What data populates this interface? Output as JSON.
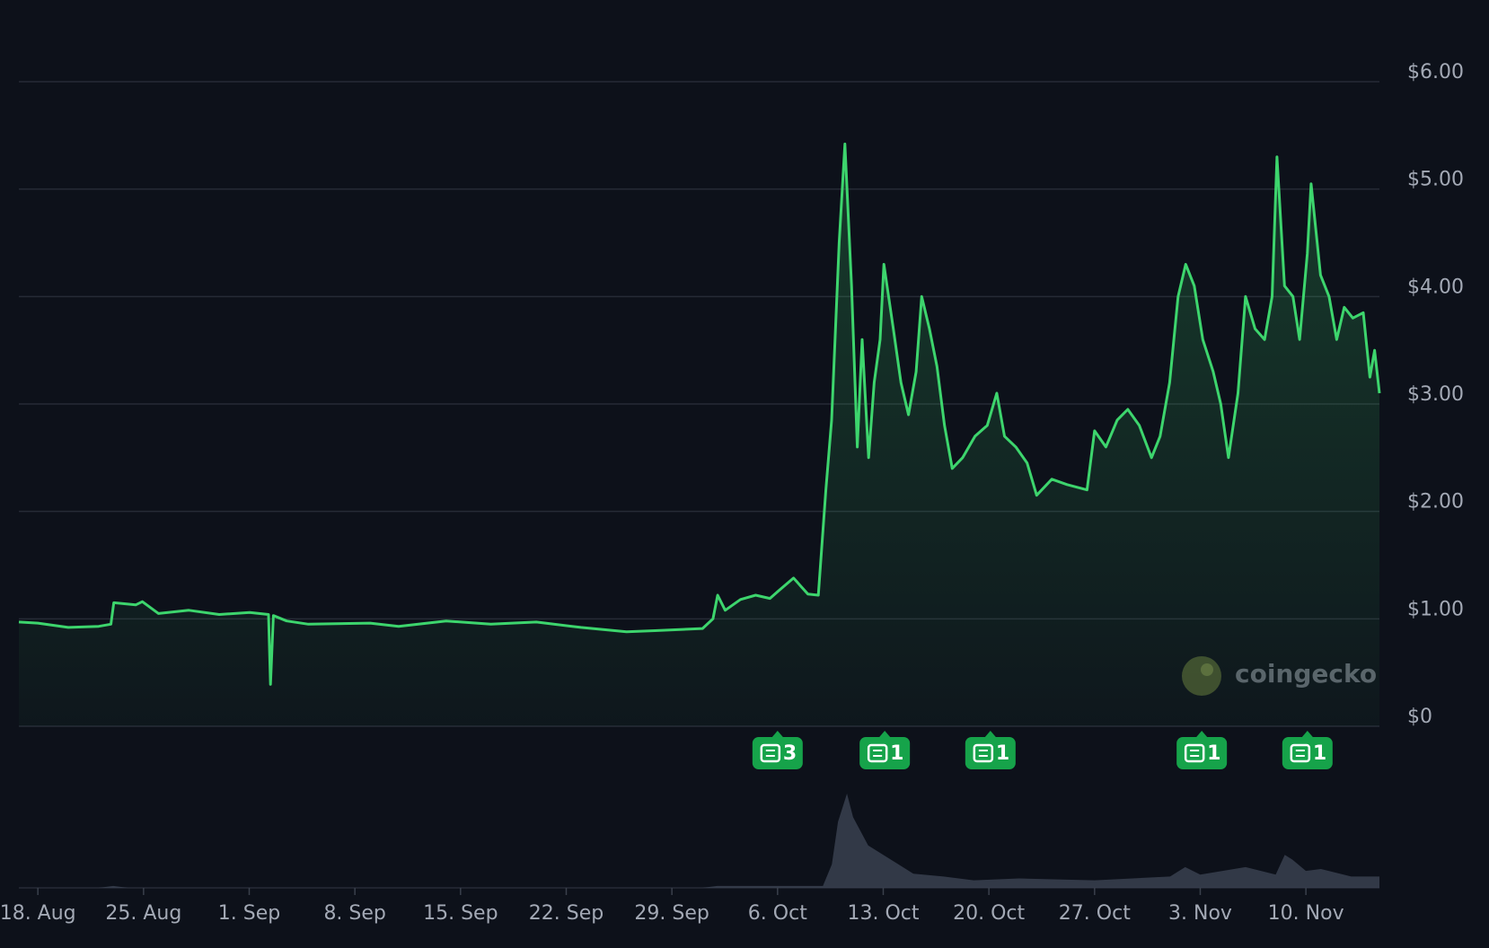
{
  "chart_data": {
    "type": "area",
    "color": "#3dd56d",
    "watermark": "coingecko",
    "x": [
      -1.26,
      0,
      2.01,
      4.03,
      4.84,
      5.03,
      6.48,
      6.92,
      7.99,
      10,
      12.01,
      14.03,
      15.28,
      15.41,
      15.6,
      16.48,
      17.92,
      22.01,
      23.9,
      27.04,
      30,
      33.02,
      35.97,
      38.99,
      40.88,
      44.03,
      44.72,
      45.03,
      45.53,
      46.54,
      47.55,
      48.49,
      49.06,
      50.06,
      51.01,
      51.7,
      52.2,
      52.58,
      53.08,
      53.46,
      53.9,
      54.28,
      54.6,
      55.03,
      55.4,
      55.79,
      56.04,
      56.67,
      57.17,
      57.67,
      58.18,
      58.55,
      59.06,
      59.56,
      60.06,
      60.57,
      61.26,
      62.08,
      62.89,
      63.52,
      64.03,
      64.78,
      65.53,
      66.16,
      67.17,
      68.18,
      69.5,
      70.0,
      70.75,
      71.5,
      72.2,
      72.96,
      73.77,
      74.34,
      74.97,
      75.53,
      76.04,
      76.6,
      77.17,
      77.86,
      78.36,
      78.87,
      79.5,
      80.0,
      80.63,
      81.26,
      81.76,
      82.08,
      82.58,
      83.14,
      83.58,
      84.09,
      84.34,
      84.97,
      85.53,
      86.04,
      86.54,
      87.11,
      87.8,
      88.24,
      88.55,
      88.87
    ],
    "values": [
      0.97,
      0.96,
      0.92,
      0.93,
      0.95,
      1.15,
      1.13,
      1.16,
      1.05,
      1.08,
      1.04,
      1.06,
      1.04,
      0.39,
      1.03,
      0.98,
      0.95,
      0.96,
      0.93,
      0.98,
      0.95,
      0.97,
      0.92,
      0.88,
      0.89,
      0.91,
      1.0,
      1.22,
      1.08,
      1.18,
      1.22,
      1.19,
      1.26,
      1.38,
      1.23,
      1.22,
      2.2,
      2.85,
      4.5,
      5.42,
      4.1,
      2.6,
      3.6,
      2.5,
      3.2,
      3.6,
      4.3,
      3.7,
      3.2,
      2.9,
      3.3,
      4.0,
      3.7,
      3.35,
      2.8,
      2.4,
      2.5,
      2.7,
      2.8,
      3.1,
      2.7,
      2.6,
      2.45,
      2.15,
      2.3,
      2.25,
      2.2,
      2.75,
      2.6,
      2.85,
      2.95,
      2.8,
      2.5,
      2.7,
      3.2,
      4.0,
      4.3,
      4.1,
      3.6,
      3.3,
      3.0,
      2.5,
      3.1,
      4.0,
      3.7,
      3.6,
      4.0,
      5.3,
      4.1,
      4.0,
      3.6,
      4.4,
      5.05,
      4.2,
      4.0,
      3.6,
      3.9,
      3.8,
      3.85,
      3.25,
      3.5,
      3.1
    ],
    "xlim": [
      -1.26,
      88.87
    ],
    "ylim": [
      0,
      6.4
    ],
    "yticks": [
      {
        "value": 0,
        "label": "$0"
      },
      {
        "value": 1,
        "label": "$1.00"
      },
      {
        "value": 2,
        "label": "$2.00"
      },
      {
        "value": 3,
        "label": "$3.00"
      },
      {
        "value": 4,
        "label": "$4.00"
      },
      {
        "value": 5,
        "label": "$5.00"
      },
      {
        "value": 6,
        "label": "$6.00"
      }
    ],
    "xticks": [
      {
        "value": 0,
        "label": "18. Aug"
      },
      {
        "value": 7,
        "label": "25. Aug"
      },
      {
        "value": 14,
        "label": "1. Sep"
      },
      {
        "value": 21,
        "label": "8. Sep"
      },
      {
        "value": 28,
        "label": "15. Sep"
      },
      {
        "value": 35,
        "label": "22. Sep"
      },
      {
        "value": 42,
        "label": "29. Sep"
      },
      {
        "value": 49,
        "label": "6. Oct"
      },
      {
        "value": 56,
        "label": "13. Oct"
      },
      {
        "value": 63,
        "label": "20. Oct"
      },
      {
        "value": 70,
        "label": "27. Oct"
      },
      {
        "value": 77,
        "label": "3. Nov"
      },
      {
        "value": 84,
        "label": "10. Nov"
      }
    ],
    "grid": true,
    "volume": {
      "color": "#3a4150",
      "ylim": [
        0,
        100
      ],
      "x": [
        -1.26,
        4,
        5,
        6,
        44,
        45,
        48,
        52,
        52.6,
        53,
        53.6,
        54,
        54.5,
        55,
        56,
        57,
        58,
        60,
        62,
        65,
        70,
        75,
        76,
        77,
        80,
        82,
        82.6,
        83.1,
        84,
        85,
        87,
        88.87
      ],
      "values": [
        0,
        0,
        2,
        0,
        0,
        2,
        2,
        2,
        25,
        70,
        100,
        75,
        60,
        45,
        35,
        25,
        15,
        12,
        8,
        10,
        8,
        12,
        22,
        14,
        22,
        14,
        35,
        30,
        18,
        20,
        12,
        12
      ]
    },
    "news": [
      {
        "x": 49,
        "count": 3
      },
      {
        "x": 56.1,
        "count": 1
      },
      {
        "x": 63.1,
        "count": 1
      },
      {
        "x": 77.1,
        "count": 1
      },
      {
        "x": 84.1,
        "count": 1
      }
    ]
  }
}
